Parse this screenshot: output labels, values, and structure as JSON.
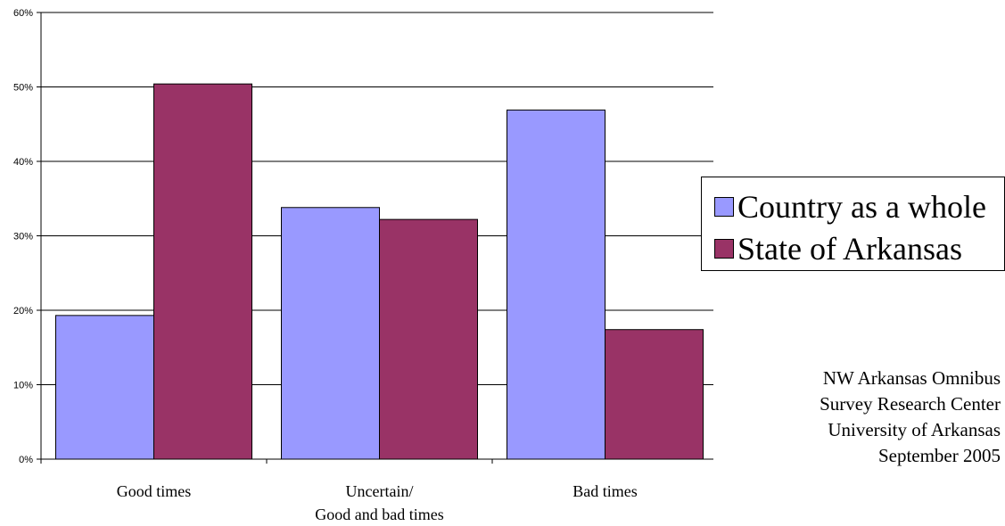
{
  "chart_data": {
    "type": "bar",
    "categories": [
      "Good times",
      [
        "Uncertain/",
        "Good and bad times"
      ],
      "Bad times"
    ],
    "series": [
      {
        "name": "Country as a whole",
        "values": [
          19.3,
          33.8,
          46.9
        ],
        "color": "#9999ff"
      },
      {
        "name": "State of Arkansas",
        "values": [
          50.4,
          32.2,
          17.4
        ],
        "color": "#993366"
      }
    ],
    "ylim": [
      0,
      60
    ],
    "yticks": [
      0,
      10,
      20,
      30,
      40,
      50,
      60
    ],
    "ytick_suffix": "%",
    "grid": true,
    "legend": "right",
    "title": "",
    "xlabel": "",
    "ylabel": ""
  },
  "legend": {
    "items": [
      "Country as a whole",
      "State of Arkansas"
    ]
  },
  "source": {
    "line1": "NW Arkansas Omnibus",
    "line2": "Survey Research Center",
    "line3": "University of Arkansas",
    "line4": "September 2005"
  }
}
